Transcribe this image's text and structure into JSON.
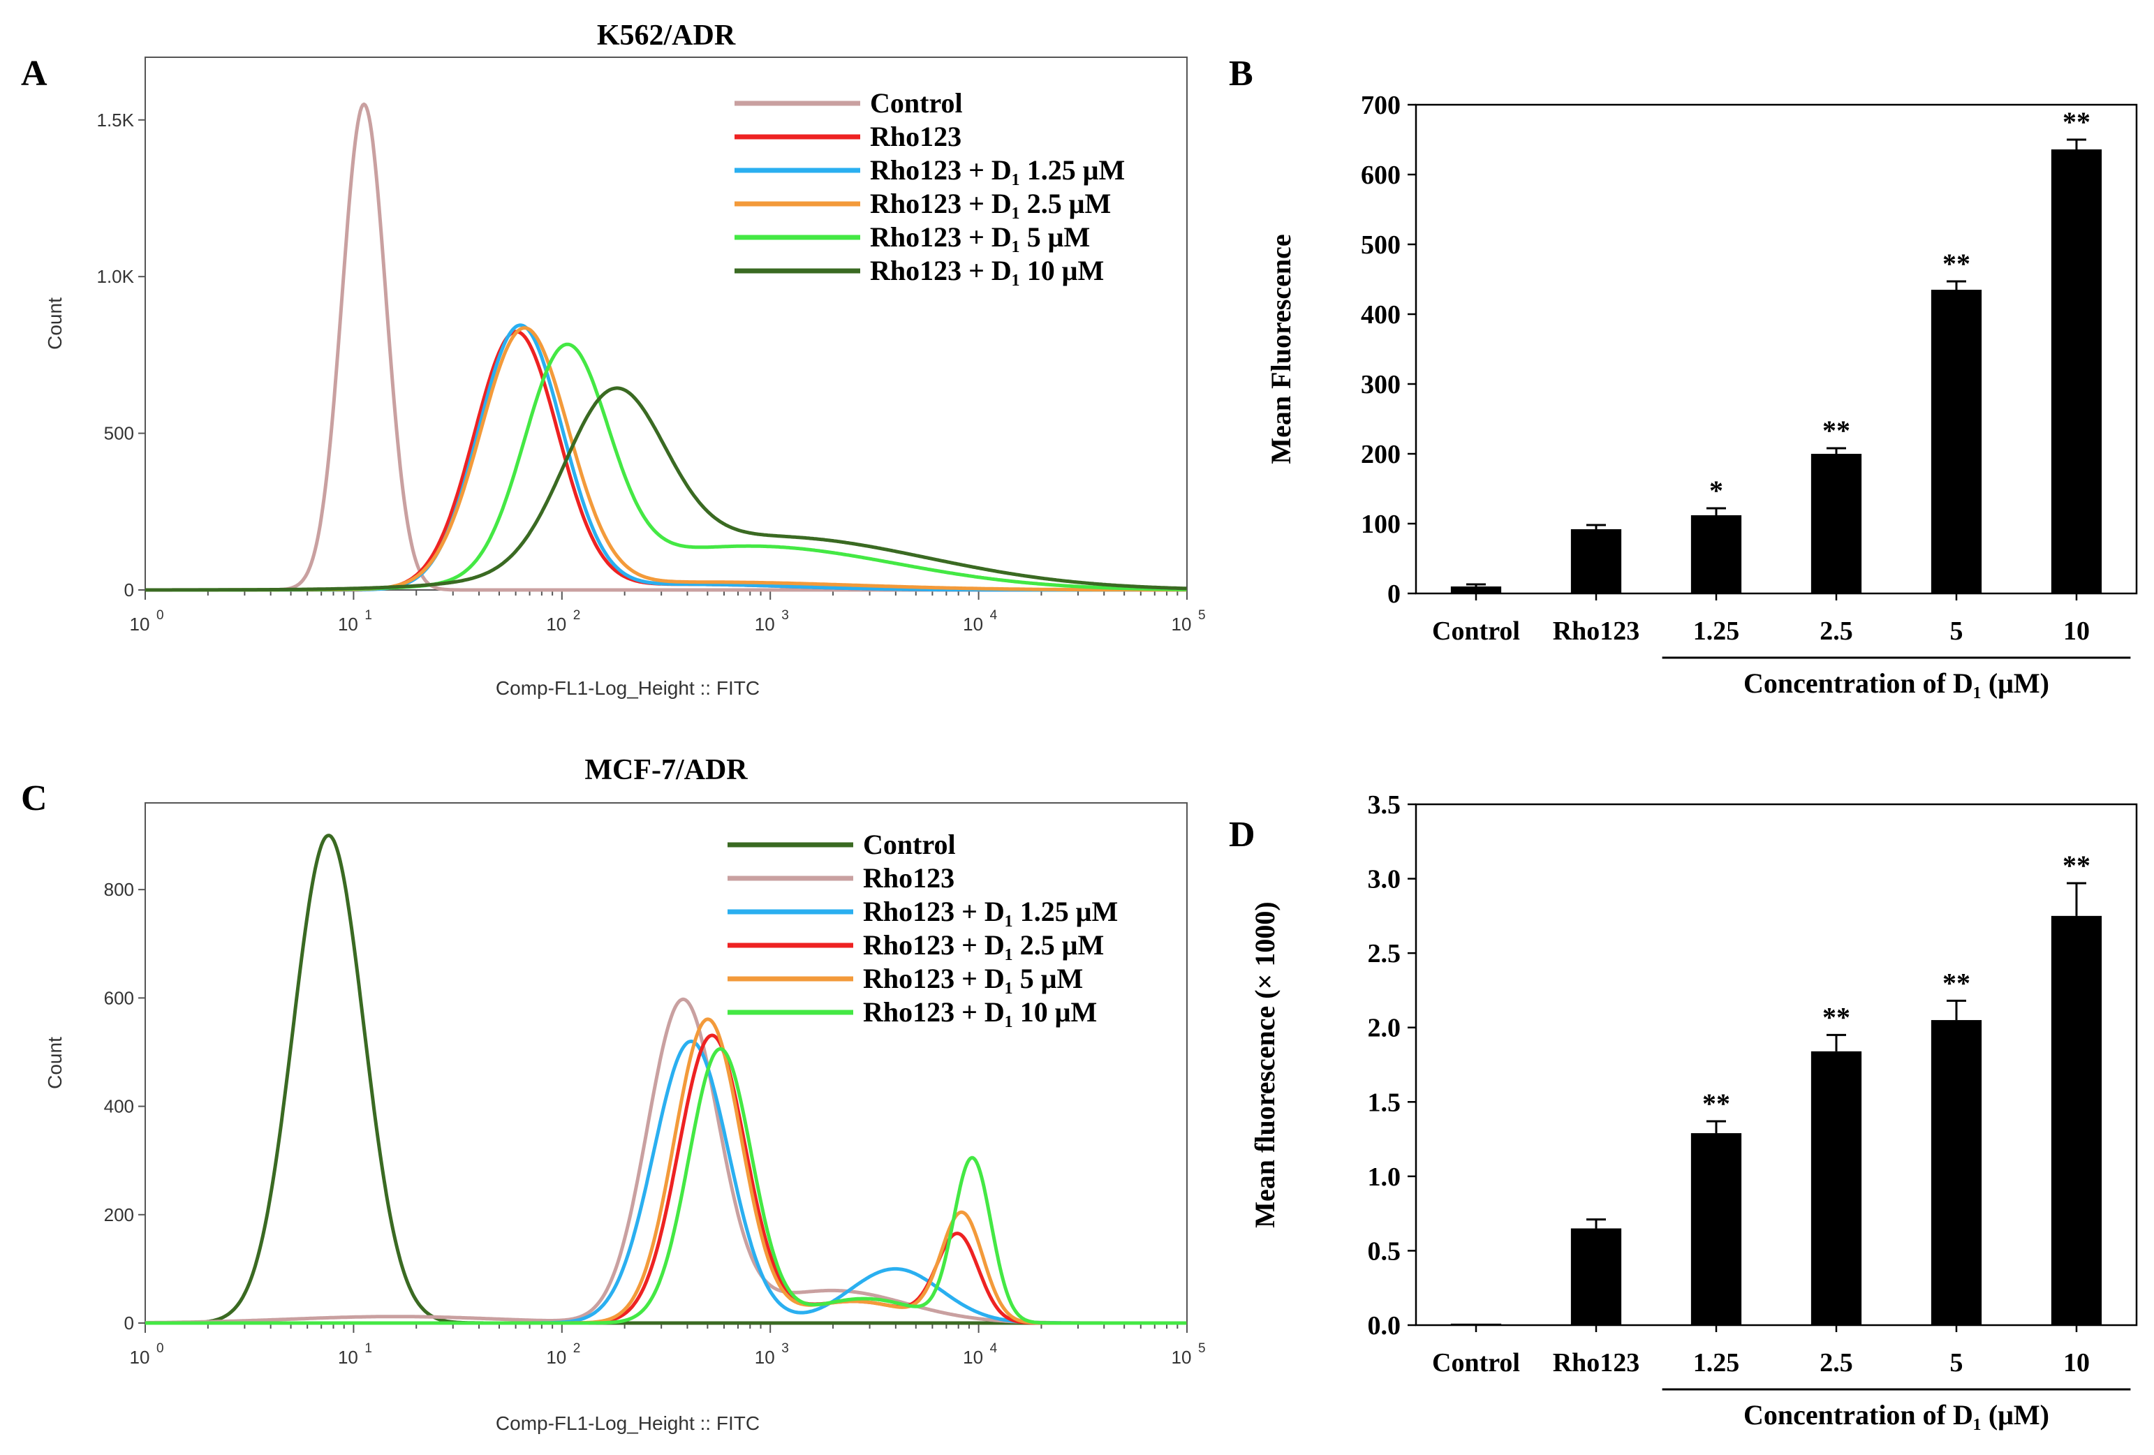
{
  "chart_data": [
    {
      "panel": "A",
      "type": "line",
      "title": "K562/ADR",
      "xlabel": "Comp-FL1-Log_Height :: FITC",
      "ylabel": "Count",
      "xscale": "log",
      "xlim": [
        1,
        100000
      ],
      "ylim": [
        0,
        1700
      ],
      "xtick_labels": [
        {
          "base": "10",
          "exp": "0",
          "value": 1
        },
        {
          "base": "10",
          "exp": "1",
          "value": 10
        },
        {
          "base": "10",
          "exp": "2",
          "value": 100
        },
        {
          "base": "10",
          "exp": "3",
          "value": 1000
        },
        {
          "base": "10",
          "exp": "4",
          "value": 10000
        },
        {
          "base": "10",
          "exp": "5",
          "value": 100000
        }
      ],
      "yticks": [
        {
          "label": "0",
          "value": 0
        },
        {
          "label": "500",
          "value": 500
        },
        {
          "label": "1.0K",
          "value": 1000
        },
        {
          "label": "1.5K",
          "value": 1500
        }
      ],
      "legend_position": "top-right",
      "series": [
        {
          "name": "Control",
          "color": "#c9a0a0",
          "gaussians": [
            {
              "mu": 1.05,
              "sigma": 0.105,
              "peak": 1550
            }
          ]
        },
        {
          "name": "Rho123",
          "color": "#ee2222",
          "gaussians": [
            {
              "mu": 1.78,
              "sigma": 0.2,
              "peak": 820
            },
            {
              "mu": 2.6,
              "sigma": 0.5,
              "peak": 18
            }
          ]
        },
        {
          "name": "Rho123 + D₁ 1.25 μM",
          "color": "#2aaff0",
          "gaussians": [
            {
              "mu": 1.8,
              "sigma": 0.2,
              "peak": 840
            },
            {
              "mu": 2.6,
              "sigma": 0.5,
              "peak": 18
            }
          ]
        },
        {
          "name": "Rho123 + D₁ 2.5 μM",
          "color": "#f39a3a",
          "gaussians": [
            {
              "mu": 1.82,
              "sigma": 0.21,
              "peak": 825
            },
            {
              "mu": 2.7,
              "sigma": 0.7,
              "peak": 25
            }
          ]
        },
        {
          "name": "Rho123 + D₁ 5 μM",
          "color": "#44e844",
          "gaussians": [
            {
              "mu": 2.02,
              "sigma": 0.2,
              "peak": 720
            },
            {
              "mu": 2.9,
              "sigma": 0.7,
              "peak": 140
            }
          ]
        },
        {
          "name": "Rho123 + D₁ 10 μM",
          "color": "#3a6a22",
          "gaussians": [
            {
              "mu": 2.25,
              "sigma": 0.24,
              "peak": 540
            },
            {
              "mu": 3.0,
              "sigma": 0.75,
              "peak": 170
            }
          ]
        }
      ]
    },
    {
      "panel": "B",
      "type": "bar",
      "categories": [
        "Control",
        "Rho123",
        "1.25",
        "2.5",
        "5",
        "10"
      ],
      "values": [
        10,
        92,
        112,
        200,
        435,
        636
      ],
      "errors": [
        3,
        6,
        10,
        8,
        12,
        14
      ],
      "significance": [
        "",
        "",
        "*",
        "**",
        "**",
        "**"
      ],
      "title": "",
      "xlabel": "Concentration of D₁ (μM)",
      "ylabel": "Mean Fluorescence",
      "ylim": [
        0,
        700
      ],
      "yticks": [
        "0",
        "100",
        "200",
        "300",
        "400",
        "500",
        "600",
        "700"
      ]
    },
    {
      "panel": "C",
      "type": "line",
      "title": "MCF-7/ADR",
      "xlabel": "Comp-FL1-Log_Height :: FITC",
      "ylabel": "Count",
      "xscale": "log",
      "xlim": [
        1,
        100000
      ],
      "ylim": [
        0,
        960
      ],
      "xtick_labels": [
        {
          "base": "10",
          "exp": "0",
          "value": 1
        },
        {
          "base": "10",
          "exp": "1",
          "value": 10
        },
        {
          "base": "10",
          "exp": "2",
          "value": 100
        },
        {
          "base": "10",
          "exp": "3",
          "value": 1000
        },
        {
          "base": "10",
          "exp": "4",
          "value": 10000
        },
        {
          "base": "10",
          "exp": "5",
          "value": 100000
        }
      ],
      "yticks": [
        {
          "label": "0",
          "value": 0
        },
        {
          "label": "200",
          "value": 200
        },
        {
          "label": "400",
          "value": 400
        },
        {
          "label": "600",
          "value": 600
        },
        {
          "label": "800",
          "value": 800
        }
      ],
      "legend_position": "top-right",
      "series": [
        {
          "name": "Control",
          "color": "#3a6a22",
          "gaussians": [
            {
              "mu": 0.88,
              "sigma": 0.17,
              "peak": 900
            }
          ]
        },
        {
          "name": "Rho123",
          "color": "#c9a0a0",
          "gaussians": [
            {
              "mu": 2.58,
              "sigma": 0.17,
              "peak": 590
            },
            {
              "mu": 3.3,
              "sigma": 0.35,
              "peak": 60
            },
            {
              "mu": 1.2,
              "sigma": 0.5,
              "peak": 12
            }
          ]
        },
        {
          "name": "Rho123 + D₁ 1.25 μM",
          "color": "#2aaff0",
          "gaussians": [
            {
              "mu": 2.62,
              "sigma": 0.18,
              "peak": 520
            },
            {
              "mu": 3.6,
              "sigma": 0.22,
              "peak": 100
            }
          ]
        },
        {
          "name": "Rho123 + D₁ 2.5 μM",
          "color": "#ee2222",
          "gaussians": [
            {
              "mu": 2.72,
              "sigma": 0.16,
              "peak": 530
            },
            {
              "mu": 3.9,
              "sigma": 0.1,
              "peak": 160
            },
            {
              "mu": 3.4,
              "sigma": 0.25,
              "peak": 40
            }
          ]
        },
        {
          "name": "Rho123 + D₁ 5 μM",
          "color": "#f39a3a",
          "gaussians": [
            {
              "mu": 2.7,
              "sigma": 0.16,
              "peak": 560
            },
            {
              "mu": 3.92,
              "sigma": 0.1,
              "peak": 200
            },
            {
              "mu": 3.4,
              "sigma": 0.25,
              "peak": 40
            }
          ]
        },
        {
          "name": "Rho123 + D₁ 10 μM",
          "color": "#44e844",
          "gaussians": [
            {
              "mu": 2.76,
              "sigma": 0.15,
              "peak": 505
            },
            {
              "mu": 3.97,
              "sigma": 0.09,
              "peak": 300
            },
            {
              "mu": 3.45,
              "sigma": 0.25,
              "peak": 45
            }
          ]
        }
      ]
    },
    {
      "panel": "D",
      "type": "bar",
      "categories": [
        "Control",
        "Rho123",
        "1.25",
        "2.5",
        "5",
        "10"
      ],
      "values": [
        0.01,
        0.65,
        1.29,
        1.84,
        2.05,
        2.75
      ],
      "errors": [
        0,
        0.06,
        0.08,
        0.11,
        0.13,
        0.22
      ],
      "significance": [
        "",
        "",
        "**",
        "**",
        "**",
        "**"
      ],
      "title": "",
      "xlabel": "Concentration of D₁ (μM)",
      "ylabel": "Mean fluorescence (× 1000)",
      "ylim": [
        0,
        3.5
      ],
      "yticks": [
        "0.0",
        "0.5",
        "1.0",
        "1.5",
        "2.0",
        "2.5",
        "3.0",
        "3.5"
      ]
    }
  ]
}
